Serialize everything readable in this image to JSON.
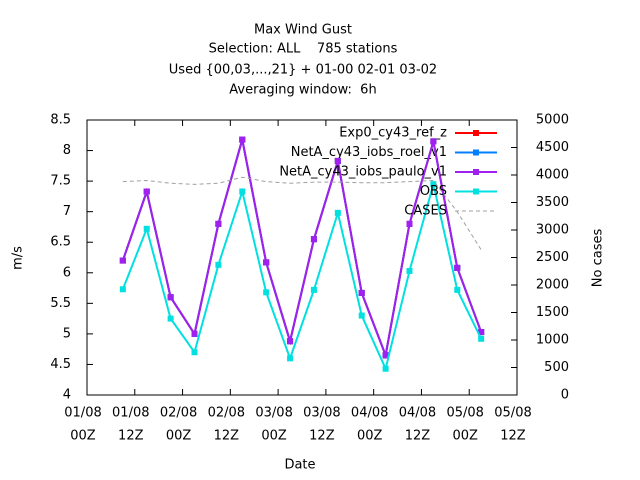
{
  "chart_data": {
    "type": "line",
    "title": [
      "Max Wind Gust",
      "Selection: ALL    785 stations",
      "Used {00,03,...,21} + 01-00 02-01 03-02",
      "Averaging window:  6h"
    ],
    "xlabel": "Date",
    "ylabel": "m/s",
    "y2label": "No cases",
    "x": [
      9,
      15,
      21,
      27,
      33,
      39,
      45,
      51,
      57,
      63,
      69,
      75,
      81,
      87,
      93,
      99
    ],
    "xlim": [
      0,
      108
    ],
    "xticks": [
      {
        "value": 0,
        "label": [
          "01/08",
          "00Z"
        ]
      },
      {
        "value": 12,
        "label": [
          "01/08",
          "12Z"
        ]
      },
      {
        "value": 24,
        "label": [
          "02/08",
          "00Z"
        ]
      },
      {
        "value": 36,
        "label": [
          "02/08",
          "12Z"
        ]
      },
      {
        "value": 48,
        "label": [
          "03/08",
          "00Z"
        ]
      },
      {
        "value": 60,
        "label": [
          "03/08",
          "12Z"
        ]
      },
      {
        "value": 72,
        "label": [
          "04/08",
          "00Z"
        ]
      },
      {
        "value": 84,
        "label": [
          "04/08",
          "12Z"
        ]
      },
      {
        "value": 96,
        "label": [
          "05/08",
          "00Z"
        ]
      },
      {
        "value": 108,
        "label": [
          "05/08",
          "12Z"
        ]
      }
    ],
    "ylim": [
      4,
      8.5
    ],
    "yticks": [
      {
        "value": 4,
        "label": "4"
      },
      4.5,
      {
        "value": 5,
        "label": "5"
      },
      5.5,
      {
        "value": 6,
        "label": "6"
      },
      6.5,
      {
        "value": 7,
        "label": "7"
      },
      7.5,
      {
        "value": 8,
        "label": "8"
      },
      8.5
    ],
    "y2lim": [
      0,
      5000
    ],
    "y2ticks": [
      0,
      500,
      1000,
      1500,
      2000,
      2500,
      3000,
      3500,
      4000,
      4500,
      5000
    ],
    "legend": "upper right",
    "series": [
      {
        "name": "Exp0_cy43_ref_z",
        "color": "#ff0000",
        "values": [
          6.2,
          7.33,
          5.6,
          5.0,
          6.8,
          8.18,
          6.17,
          4.88,
          6.55,
          7.83,
          5.67,
          4.65,
          6.8,
          8.15,
          6.08,
          5.03
        ]
      },
      {
        "name": "NetA_cy43_iobs_roel_v1",
        "color": "#0080ff",
        "values": [
          6.2,
          7.33,
          5.6,
          5.0,
          6.8,
          8.18,
          6.17,
          4.88,
          6.55,
          7.83,
          5.67,
          4.65,
          6.8,
          8.15,
          6.08,
          5.03
        ]
      },
      {
        "name": "NetA_cy43_iobs_paulo_v1",
        "color": "#a020f0",
        "values": [
          6.2,
          7.33,
          5.6,
          5.0,
          6.8,
          8.18,
          6.17,
          4.88,
          6.55,
          7.83,
          5.67,
          4.65,
          6.8,
          8.15,
          6.08,
          5.03
        ]
      },
      {
        "name": "OBS",
        "color": "#00e0e0",
        "values": [
          5.73,
          6.72,
          5.25,
          4.7,
          6.13,
          7.33,
          5.68,
          4.6,
          5.72,
          6.98,
          5.3,
          4.43,
          6.03,
          7.45,
          5.72,
          4.92
        ]
      },
      {
        "name": "CASES",
        "color": "#a0a0a0",
        "axis": "y2",
        "dashed": true,
        "values": [
          3880,
          3900,
          3850,
          3830,
          3850,
          3960,
          3880,
          3850,
          3870,
          3870,
          3860,
          3860,
          3880,
          3900,
          3330,
          2640
        ]
      }
    ]
  }
}
